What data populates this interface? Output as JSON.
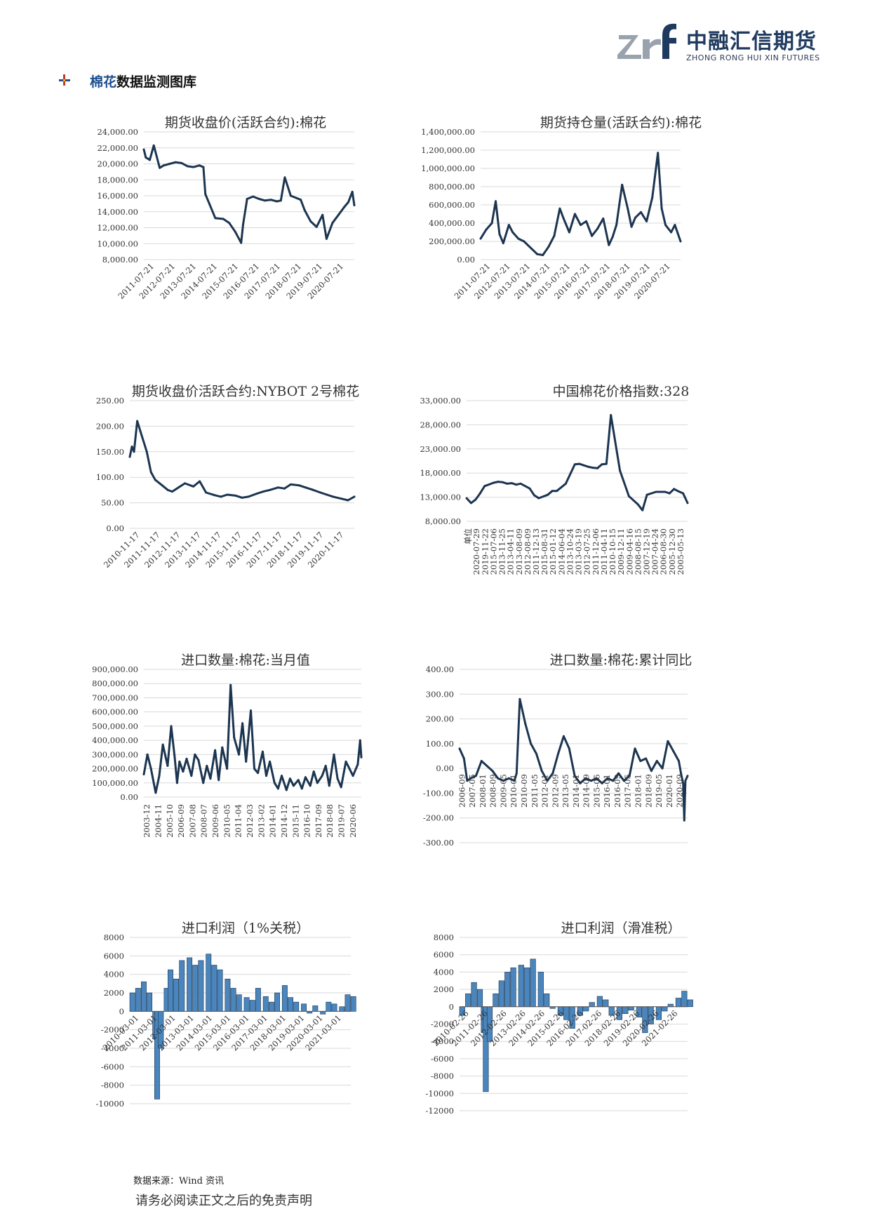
{
  "header": {
    "logo_cn": "中融汇信期货",
    "logo_en": "ZHONG RONG HUI XIN FUTURES",
    "section_title_hl": "棉花",
    "section_title_rest": "数据监测图库"
  },
  "footer": {
    "source": "数据来源：Wind 资讯",
    "disclaimer": "请务必阅读正文之后的免责声明"
  },
  "colors": {
    "line": "#1c3550",
    "bar": "#4a86bd",
    "grid": "#d9d9d9"
  },
  "chart_data": [
    {
      "id": "c1",
      "type": "line",
      "title": "期货收盘价(活跃合约):棉花",
      "ylim": [
        8000,
        24000
      ],
      "yticks": [
        "24,000.00",
        "22,000.00",
        "20,000.00",
        "18,000.00",
        "16,000.00",
        "14,000.00",
        "12,000.00",
        "10,000.00",
        "8,000.00"
      ],
      "xticks": [
        "2011-07-21",
        "2012-07-21",
        "2013-07-21",
        "2014-07-21",
        "2015-07-21",
        "2016-07-21",
        "2017-07-21",
        "2018-07-21",
        "2019-07-21",
        "2020-07-21"
      ],
      "x": [
        0,
        0.1,
        0.3,
        0.5,
        0.8,
        1.0,
        1.3,
        1.6,
        1.9,
        2.2,
        2.5,
        2.8,
        3.0,
        3.1,
        3.3,
        3.6,
        4.0,
        4.3,
        4.6,
        4.9,
        5.0,
        5.2,
        5.5,
        5.8,
        6.1,
        6.4,
        6.7,
        6.9,
        7.1,
        7.4,
        7.7,
        7.9,
        8.1,
        8.4,
        8.7,
        9.0,
        9.2,
        9.5,
        9.8,
        10.1,
        10.3,
        10.5,
        10.6
      ],
      "values": [
        21800,
        20800,
        20500,
        22300,
        19500,
        19800,
        20000,
        20200,
        20100,
        19700,
        19600,
        19800,
        19600,
        16200,
        15000,
        13200,
        13100,
        12600,
        11500,
        10100,
        12400,
        15600,
        15900,
        15600,
        15400,
        15500,
        15300,
        15400,
        18300,
        16000,
        15700,
        15500,
        14200,
        12800,
        12100,
        13600,
        10600,
        12600,
        13600,
        14600,
        15200,
        16500,
        14800
      ]
    },
    {
      "id": "c2",
      "type": "line",
      "title": "期货持仓量(活跃合约):棉花",
      "ylim": [
        0,
        1400000
      ],
      "yticks": [
        "1,400,000.00",
        "1,200,000.00",
        "1,000,000.00",
        "800,000.00",
        "600,000.00",
        "400,000.00",
        "200,000.00",
        "0.00"
      ],
      "xticks": [
        "2011-07-21",
        "2012-07-21",
        "2013-07-21",
        "2014-07-21",
        "2015-07-21",
        "2016-07-21",
        "2017-07-21",
        "2018-07-21",
        "2019-07-21",
        "2020-07-21"
      ],
      "x": [
        0,
        0.3,
        0.6,
        0.8,
        1.0,
        1.2,
        1.5,
        1.7,
        2.0,
        2.3,
        2.7,
        3.0,
        3.3,
        3.6,
        3.9,
        4.2,
        4.4,
        4.7,
        5.0,
        5.3,
        5.6,
        5.9,
        6.2,
        6.5,
        6.8,
        7.0,
        7.2,
        7.5,
        7.8,
        8.0,
        8.2,
        8.5,
        8.8,
        9.1,
        9.4,
        9.6,
        9.8,
        10.1,
        10.3,
        10.6
      ],
      "values": [
        230000,
        330000,
        400000,
        640000,
        280000,
        180000,
        380000,
        300000,
        230000,
        200000,
        120000,
        60000,
        50000,
        140000,
        260000,
        560000,
        450000,
        300000,
        500000,
        380000,
        420000,
        260000,
        340000,
        450000,
        160000,
        250000,
        380000,
        820000,
        560000,
        360000,
        460000,
        520000,
        420000,
        680000,
        1170000,
        560000,
        380000,
        300000,
        380000,
        200000
      ]
    },
    {
      "id": "c3",
      "type": "line",
      "title": "期货收盘价活跃合约:NYBOT 2号棉花",
      "ylim": [
        0,
        250
      ],
      "yticks": [
        "250.00",
        "200.00",
        "150.00",
        "100.00",
        "50.00",
        "0.00"
      ],
      "xticks": [
        "2010-11-17",
        "2011-11-17",
        "2012-11-17",
        "2013-11-17",
        "2014-11-17",
        "2015-11-17",
        "2016-11-17",
        "2017-11-17",
        "2018-11-17",
        "2019-11-17",
        "2020-11-17"
      ],
      "x": [
        0,
        0.1,
        0.2,
        0.35,
        0.5,
        0.8,
        1.0,
        1.2,
        1.5,
        1.8,
        2.0,
        2.3,
        2.6,
        3.0,
        3.3,
        3.6,
        4.0,
        4.3,
        4.6,
        5.0,
        5.3,
        5.6,
        6.0,
        6.3,
        6.6,
        7.0,
        7.3,
        7.6,
        8.0,
        8.3,
        8.6,
        9.0,
        9.3,
        9.6,
        10.0,
        10.3,
        10.6
      ],
      "values": [
        140,
        160,
        150,
        210,
        190,
        150,
        110,
        95,
        85,
        75,
        72,
        80,
        88,
        82,
        92,
        70,
        65,
        62,
        66,
        64,
        60,
        62,
        68,
        72,
        75,
        80,
        78,
        86,
        84,
        80,
        76,
        70,
        66,
        62,
        58,
        55,
        62
      ]
    },
    {
      "id": "c4",
      "type": "line",
      "title": "中国棉花价格指数:328",
      "ylim": [
        8000,
        33000
      ],
      "yticks": [
        "33,000.00",
        "28,000.00",
        "23,000.00",
        "18,000.00",
        "13,000.00",
        "8,000.00"
      ],
      "xticks": [
        "单位",
        "2020-07-29",
        "2019-11-22",
        "2015-07-06",
        "2013-11-25",
        "2013-04-11",
        "2013-08-09",
        "2012-08-09",
        "2011-12-13",
        "2015-08-31",
        "2015-01-12",
        "2014-06-04",
        "2013-10-24",
        "2013-03-19",
        "2012-07-25",
        "2011-12-06",
        "2011-04-11",
        "2010-10-15",
        "2009-12-11",
        "2009-04-16",
        "2008-08-15",
        "2007-12-19",
        "2007-04-24",
        "2006-08-30",
        "2005-12-30",
        "2005-05-13"
      ],
      "x": [
        0,
        0.5,
        1.0,
        1.5,
        2.0,
        3.0,
        3.5,
        4.0,
        4.5,
        5.0,
        5.5,
        6.0,
        7.0,
        7.5,
        8.0,
        9.0,
        9.5,
        10.0,
        11.0,
        12.0,
        12.5,
        13.0,
        13.5,
        14.0,
        14.5,
        15.0,
        15.5,
        16.0,
        17.0,
        18.0,
        19.0,
        19.5,
        20.0,
        21.0,
        22.0,
        22.5,
        23.0,
        23.5,
        24.0,
        24.5
      ],
      "values": [
        12800,
        11800,
        12500,
        13800,
        15300,
        16000,
        16200,
        16100,
        15800,
        15900,
        15600,
        15800,
        14800,
        13400,
        12800,
        13500,
        14300,
        14300,
        15800,
        19800,
        19900,
        19600,
        19300,
        19100,
        19000,
        19800,
        19900,
        30000,
        18500,
        13200,
        11500,
        10300,
        13500,
        14100,
        14100,
        13800,
        14700,
        14200,
        13800,
        11800
      ]
    },
    {
      "id": "c5",
      "type": "line",
      "title": "进口数量:棉花:当月值",
      "ylim": [
        0,
        900000
      ],
      "yticks": [
        "900,000.00",
        "800,000.00",
        "700,000.00",
        "600,000.00",
        "500,000.00",
        "400,000.00",
        "300,000.00",
        "200,000.00",
        "100,000.00",
        "0.00"
      ],
      "xticks": [
        "2003-12",
        "2004-11",
        "2005-10",
        "2006-09",
        "2007-08",
        "2008-07",
        "2009-06",
        "2010-05",
        "2011-04",
        "2012-03",
        "2013-02",
        "2014-01",
        "2014-12",
        "2015-11",
        "2016-10",
        "2017-09",
        "2018-08",
        "2019-07",
        "2020-06"
      ],
      "x": [
        0,
        0.3,
        0.6,
        1.0,
        1.3,
        1.6,
        2.0,
        2.3,
        2.6,
        2.8,
        3.0,
        3.3,
        3.6,
        4.0,
        4.3,
        4.6,
        5.0,
        5.3,
        5.6,
        6.0,
        6.3,
        6.6,
        7.0,
        7.3,
        7.6,
        8.0,
        8.3,
        8.6,
        9.0,
        9.3,
        9.6,
        10.0,
        10.3,
        10.6,
        11.0,
        11.3,
        11.6,
        12.0,
        12.3,
        12.6,
        13.0,
        13.3,
        13.6,
        14.0,
        14.3,
        14.6,
        15.0,
        15.3,
        15.6,
        16.0,
        16.3,
        16.6,
        17.0,
        17.3,
        17.6,
        18.0,
        18.2,
        18.3
      ],
      "values": [
        160000,
        300000,
        200000,
        30000,
        150000,
        370000,
        220000,
        500000,
        280000,
        100000,
        250000,
        180000,
        270000,
        150000,
        300000,
        260000,
        100000,
        220000,
        130000,
        330000,
        120000,
        350000,
        200000,
        790000,
        420000,
        300000,
        520000,
        250000,
        610000,
        200000,
        170000,
        320000,
        150000,
        250000,
        100000,
        60000,
        150000,
        50000,
        130000,
        80000,
        120000,
        60000,
        140000,
        80000,
        180000,
        100000,
        150000,
        220000,
        80000,
        300000,
        130000,
        70000,
        250000,
        200000,
        150000,
        230000,
        400000,
        280000
      ]
    },
    {
      "id": "c6",
      "type": "line",
      "title": "进口数量:棉花:累计同比",
      "ylim": [
        -300,
        400
      ],
      "yticks": [
        "400.00",
        "300.00",
        "200.00",
        "100.00",
        "0.00",
        "-100.00",
        "-200.00",
        "-300.00"
      ],
      "xticks": [
        "2006-09",
        "2007-05",
        "2008-01",
        "2008-09",
        "2009-05",
        "2010-01",
        "2010-09",
        "2011-05",
        "2012-01",
        "2012-09",
        "2013-05",
        "2014-01",
        "2014-09",
        "2015-05",
        "2016-01",
        "2016-09",
        "2017-05",
        "2018-01",
        "2018-09",
        "2019-05",
        "2020-01",
        "2020-09"
      ],
      "x": [
        0,
        0.4,
        0.7,
        1.0,
        1.5,
        2.0,
        2.5,
        3.0,
        3.5,
        4.0,
        4.5,
        5.0,
        5.2,
        5.5,
        6.0,
        6.5,
        7.0,
        7.5,
        8.0,
        8.5,
        9.0,
        9.5,
        10.0,
        10.5,
        11.0,
        11.5,
        12.0,
        12.5,
        13.0,
        13.5,
        14.0,
        14.5,
        15.0,
        15.5,
        16.0,
        16.5,
        17.0,
        17.5,
        18.0,
        18.5,
        19.0,
        19.5,
        20.0,
        20.2,
        20.4,
        20.5,
        20.6,
        20.8
      ],
      "values": [
        80,
        40,
        -50,
        -40,
        -30,
        30,
        10,
        -10,
        -40,
        -50,
        -40,
        -50,
        -20,
        280,
        180,
        100,
        60,
        -10,
        -50,
        -20,
        60,
        130,
        80,
        -30,
        -60,
        -40,
        -50,
        -40,
        -60,
        -40,
        -50,
        -20,
        -50,
        -30,
        80,
        30,
        40,
        -10,
        30,
        0,
        110,
        70,
        30,
        -20,
        -60,
        -210,
        -50,
        -30
      ]
    },
    {
      "id": "c7",
      "type": "bar",
      "title": "进口利润（1%关税）",
      "ylim": [
        -10000,
        8000
      ],
      "yticks": [
        "8000",
        "6000",
        "4000",
        "2000",
        "0",
        "-2000",
        "-4000",
        "-6000",
        "-8000",
        "-10000"
      ],
      "xticks": [
        "2010-03-01",
        "2011-03-01",
        "2012-03-01",
        "2013-03-01",
        "2014-03-01",
        "2015-03-01",
        "2016-03-01",
        "2017-03-01",
        "2018-03-01",
        "2019-03-01",
        "2020-03-01",
        "2021-03-01"
      ],
      "x": [
        0,
        0.3,
        0.6,
        0.9,
        1.2,
        1.3,
        1.5,
        1.8,
        2.0,
        2.3,
        2.6,
        3.0,
        3.3,
        3.6,
        4.0,
        4.3,
        4.6,
        5.0,
        5.3,
        5.6,
        6.0,
        6.3,
        6.6,
        7.0,
        7.3,
        7.6,
        8.0,
        8.3,
        8.6,
        9.0,
        9.3,
        9.6,
        10.0,
        10.3,
        10.6,
        11.0,
        11.3,
        11.6
      ],
      "values": [
        2000,
        2500,
        3200,
        2000,
        -3000,
        -9500,
        -4000,
        2500,
        4500,
        3500,
        5500,
        5800,
        5000,
        5500,
        6200,
        5000,
        4500,
        3500,
        2500,
        1800,
        1500,
        1200,
        2500,
        1600,
        1000,
        2000,
        2800,
        1500,
        1000,
        800,
        -200,
        600,
        -300,
        1000,
        800,
        500,
        1800,
        1600
      ]
    },
    {
      "id": "c8",
      "type": "bar",
      "title": "进口利润（滑准税）",
      "ylim": [
        -12000,
        8000
      ],
      "yticks": [
        "8000",
        "6000",
        "4000",
        "2000",
        "0",
        "-2000",
        "-4000",
        "-6000",
        "-8000",
        "-10000",
        "-12000"
      ],
      "xticks": [
        "2010-02-26",
        "2011-02-26",
        "2012-02-26",
        "2013-02-26",
        "2014-02-26",
        "2015-02-26",
        "2016-02-26",
        "2017-02-26",
        "2018-02-26",
        "2019-02-26",
        "2020-02-26",
        "2021-02-26"
      ],
      "x": [
        0,
        0.3,
        0.6,
        0.9,
        1.1,
        1.2,
        1.4,
        1.7,
        2.0,
        2.3,
        2.6,
        3.0,
        3.3,
        3.6,
        4.0,
        4.3,
        4.6,
        5.0,
        5.3,
        5.6,
        6.0,
        6.3,
        6.6,
        7.0,
        7.3,
        7.6,
        8.0,
        8.3,
        8.6,
        9.0,
        9.3,
        9.6,
        10.0,
        10.3,
        10.6,
        11.0,
        11.3,
        11.6
      ],
      "values": [
        -1000,
        1500,
        2800,
        2000,
        -3000,
        -9800,
        -4000,
        1500,
        3000,
        4000,
        4500,
        4800,
        4500,
        5500,
        4000,
        1500,
        -200,
        -1000,
        -1500,
        -2500,
        -1000,
        -500,
        500,
        1200,
        800,
        -1000,
        -1500,
        -800,
        -400,
        -1200,
        -3000,
        -2000,
        -1500,
        -500,
        300,
        1000,
        1800,
        800
      ]
    }
  ]
}
